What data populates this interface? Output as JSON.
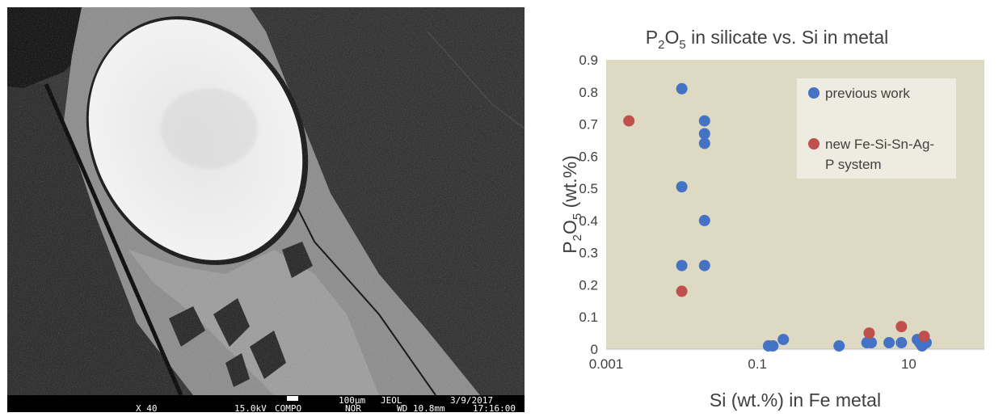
{
  "micrograph": {
    "caption": {
      "magnification": "X 40",
      "voltage": "15.0kV",
      "mode": "COMPO",
      "nor": "NOR",
      "scale": "100µm",
      "maker": "JEOL",
      "wd": "WD 10.8mm",
      "date": "3/9/2017",
      "time": "17:16:00"
    }
  },
  "chart_data": {
    "type": "scatter",
    "title_main": "P",
    "title_sub1": "2",
    "title_mid": "O",
    "title_sub2": "5",
    "title_tail": " in silicate vs. Si in metal",
    "xlabel": "Si (wt.%) in Fe metal",
    "ylabel_main": "P",
    "ylabel_sub1": "2",
    "ylabel_mid": "O",
    "ylabel_sub2": "5",
    "ylabel_tail": " (wt.%)",
    "x_scale": "log",
    "xlim": [
      0.001,
      100
    ],
    "ylim": [
      0,
      0.9
    ],
    "x_ticks": [
      {
        "v": 0.001,
        "label": "0.001"
      },
      {
        "v": 0.1,
        "label": "0.1"
      },
      {
        "v": 10,
        "label": "10"
      }
    ],
    "y_ticks": [
      {
        "v": 0,
        "label": "0"
      },
      {
        "v": 0.1,
        "label": "0.1"
      },
      {
        "v": 0.2,
        "label": "0.2"
      },
      {
        "v": 0.3,
        "label": "0.3"
      },
      {
        "v": 0.4,
        "label": "0.4"
      },
      {
        "v": 0.5,
        "label": "0.5"
      },
      {
        "v": 0.6,
        "label": "0.6"
      },
      {
        "v": 0.7,
        "label": "0.7"
      },
      {
        "v": 0.8,
        "label": "0.8"
      },
      {
        "v": 0.9,
        "label": "0.9"
      }
    ],
    "grid": false,
    "legend_position": "top-right",
    "plot_bg": "#ddd9c3",
    "series": [
      {
        "name": "previous work",
        "color": "#4472c4",
        "points": [
          [
            0.01,
            0.81
          ],
          [
            0.01,
            0.505
          ],
          [
            0.01,
            0.26
          ],
          [
            0.02,
            0.71
          ],
          [
            0.02,
            0.67
          ],
          [
            0.02,
            0.64
          ],
          [
            0.02,
            0.4
          ],
          [
            0.02,
            0.26
          ],
          [
            0.14,
            0.01
          ],
          [
            0.16,
            0.01
          ],
          [
            0.22,
            0.03
          ],
          [
            1.2,
            0.01
          ],
          [
            2.8,
            0.02
          ],
          [
            3.2,
            0.02
          ],
          [
            5.5,
            0.02
          ],
          [
            8.0,
            0.02
          ],
          [
            13,
            0.03
          ],
          [
            14,
            0.02
          ],
          [
            15,
            0.01
          ],
          [
            17,
            0.02
          ]
        ]
      },
      {
        "name_line1": "new Fe-Si-Sn-Ag-",
        "name_line2": "P system",
        "color": "#c0504d",
        "points": [
          [
            0.002,
            0.71
          ],
          [
            0.01,
            0.18
          ],
          [
            3.0,
            0.05
          ],
          [
            8.0,
            0.07
          ],
          [
            16,
            0.04
          ]
        ]
      }
    ]
  }
}
